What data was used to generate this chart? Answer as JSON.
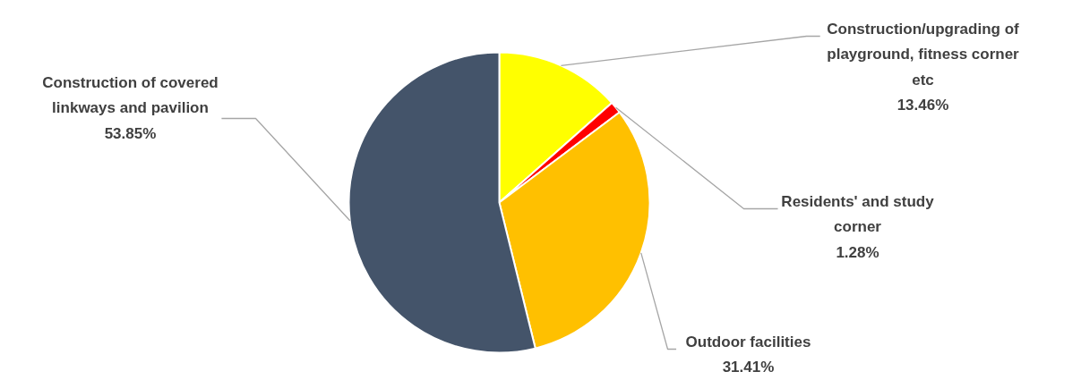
{
  "chart_data": {
    "type": "pie",
    "categories": [
      "Construction/upgrading of playground, fitness corner etc",
      "Residents' and study corner",
      "Outdoor facilities",
      "Construction of covered linkways and pavilion"
    ],
    "values": [
      13.46,
      1.28,
      31.41,
      53.85
    ],
    "colors": [
      "#ffff00",
      "#ff0000",
      "#ffc000",
      "#44546a"
    ],
    "value_labels": [
      "13.46%",
      "1.28%",
      "31.41%",
      "53.85%"
    ]
  }
}
